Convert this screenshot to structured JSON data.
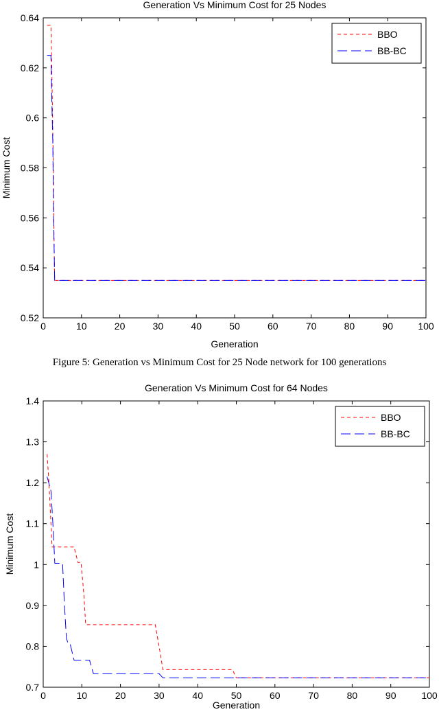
{
  "caption": "Figure 5: Generation vs Minimum Cost for 25 Node network for 100 generations",
  "chart_data": [
    {
      "type": "line",
      "title": "Generation Vs Minimum Cost for 25 Nodes",
      "xlabel": "Generation",
      "ylabel": "Minimum Cost",
      "xlim": [
        0,
        100
      ],
      "ylim": [
        0.52,
        0.64
      ],
      "xticks": [
        0,
        10,
        20,
        30,
        40,
        50,
        60,
        70,
        80,
        90,
        100
      ],
      "yticks": [
        0.52,
        0.54,
        0.56,
        0.58,
        0.6,
        0.62,
        0.64
      ],
      "xtick_labels": [
        "0",
        "10",
        "20",
        "30",
        "40",
        "50",
        "60",
        "70",
        "80",
        "90",
        "100"
      ],
      "ytick_labels": [
        "0.52",
        "0.54",
        "0.56",
        "0.58",
        "0.6",
        "0.62",
        "0.64"
      ],
      "grid": false,
      "legend": "top-right",
      "series": [
        {
          "name": "BBO",
          "color": "#ff0000",
          "style": "dashed",
          "points": [
            [
              1,
              0.637
            ],
            [
              2,
              0.637
            ],
            [
              2.3,
              0.615
            ],
            [
              2.6,
              0.585
            ],
            [
              2.8,
              0.555
            ],
            [
              3,
              0.535
            ],
            [
              100,
              0.535
            ]
          ]
        },
        {
          "name": "BB-BC",
          "color": "#0000ff",
          "style": "longdash",
          "points": [
            [
              1,
              0.625
            ],
            [
              2,
              0.625
            ],
            [
              2.2,
              0.61
            ],
            [
              2.5,
              0.59
            ],
            [
              2.7,
              0.56
            ],
            [
              3,
              0.535
            ],
            [
              100,
              0.535
            ]
          ]
        }
      ]
    },
    {
      "type": "line",
      "title": "Generation Vs Minimum Cost for 64 Nodes",
      "xlabel": "Generation",
      "ylabel": "Minimum Cost",
      "xlim": [
        0,
        100
      ],
      "ylim": [
        0.7,
        1.4
      ],
      "xticks": [
        0,
        10,
        20,
        30,
        40,
        50,
        60,
        70,
        80,
        90,
        100
      ],
      "yticks": [
        0.7,
        0.8,
        0.9,
        1.0,
        1.1,
        1.2,
        1.3,
        1.4
      ],
      "xtick_labels": [
        "0",
        "10",
        "20",
        "30",
        "40",
        "50",
        "60",
        "70",
        "80",
        "90",
        "100"
      ],
      "ytick_labels": [
        "0.7",
        "0.8",
        "0.9",
        "1",
        "1.1",
        "1.2",
        "1.3",
        "1.4"
      ],
      "grid": false,
      "legend": "top-right",
      "series": [
        {
          "name": "BBO",
          "color": "#ff0000",
          "style": "dashed",
          "points": [
            [
              1,
              1.27
            ],
            [
              1.5,
              1.2
            ],
            [
              2,
              1.1
            ],
            [
              2.3,
              1.043
            ],
            [
              8,
              1.043
            ],
            [
              9,
              1.005
            ],
            [
              9.8,
              1.005
            ],
            [
              10.5,
              0.93
            ],
            [
              11,
              0.853
            ],
            [
              29,
              0.853
            ],
            [
              30,
              0.8
            ],
            [
              31,
              0.743
            ],
            [
              49,
              0.743
            ],
            [
              50,
              0.723
            ],
            [
              100,
              0.723
            ]
          ]
        },
        {
          "name": "BB-BC",
          "color": "#0000ff",
          "style": "longdash",
          "points": [
            [
              1,
              1.215
            ],
            [
              2,
              1.18
            ],
            [
              2.5,
              1.1
            ],
            [
              3,
              1.003
            ],
            [
              5,
              1.003
            ],
            [
              5.5,
              0.9
            ],
            [
              6,
              0.82
            ],
            [
              6.5,
              0.805
            ],
            [
              7,
              0.805
            ],
            [
              8,
              0.766
            ],
            [
              10,
              0.766
            ],
            [
              11,
              0.766
            ],
            [
              12,
              0.766
            ],
            [
              13,
              0.733
            ],
            [
              30,
              0.733
            ],
            [
              31,
              0.723
            ],
            [
              100,
              0.723
            ]
          ]
        }
      ]
    }
  ]
}
